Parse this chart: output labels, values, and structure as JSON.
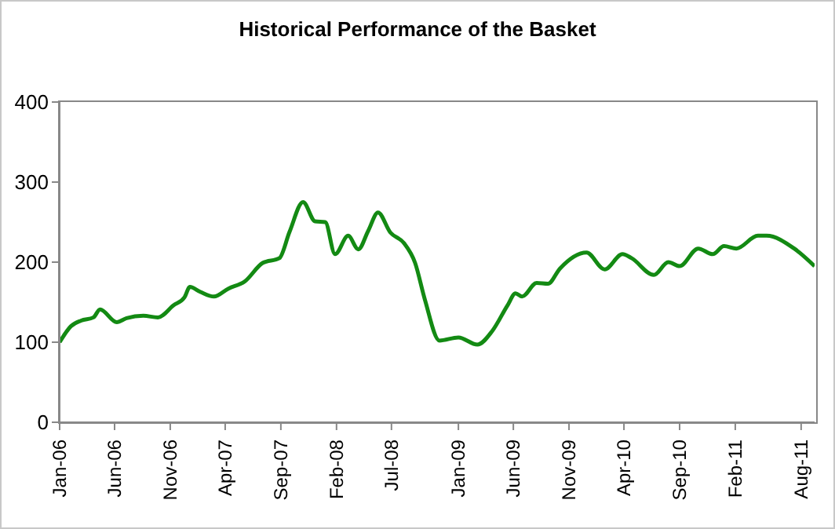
{
  "chart_data": {
    "type": "line",
    "title": "Historical Performance of the Basket",
    "x": [
      "2006-01-01",
      "2006-02-01",
      "2006-03-01",
      "2006-04-04",
      "2006-04-22",
      "2006-06-07",
      "2006-07-04",
      "2006-08-19",
      "2006-09-28",
      "2006-11-10",
      "2006-12-10",
      "2006-12-25",
      "2007-01-22",
      "2007-03-01",
      "2007-04-10",
      "2007-05-25",
      "2007-07-13",
      "2007-08-28",
      "2007-09-25",
      "2007-11-01",
      "2007-12-04",
      "2008-01-01",
      "2008-01-28",
      "2008-03-04",
      "2008-04-01",
      "2008-04-28",
      "2008-05-25",
      "2008-06-28",
      "2008-08-04",
      "2008-09-04",
      "2008-10-01",
      "2008-11-10",
      "2009-01-01",
      "2009-02-22",
      "2009-04-04",
      "2009-05-16",
      "2009-06-07",
      "2009-06-25",
      "2009-08-04",
      "2009-09-04",
      "2009-10-07",
      "2009-12-19",
      "2010-02-07",
      "2010-03-28",
      "2010-04-22",
      "2010-06-22",
      "2010-08-01",
      "2010-09-01",
      "2010-10-22",
      "2010-12-01",
      "2011-01-01",
      "2011-02-04",
      "2011-04-04",
      "2011-04-28",
      "2011-07-13",
      "2011-09-07"
    ],
    "series": [
      {
        "color": "#138a13",
        "values": [
          100,
          120,
          127,
          131,
          141,
          125,
          130,
          133,
          131,
          146,
          156,
          169,
          163,
          157,
          167,
          176,
          199,
          205,
          238,
          275,
          251,
          250,
          210,
          233,
          216,
          239,
          262,
          237,
          224,
          199,
          153,
          102,
          106,
          97,
          114,
          146,
          161,
          157,
          174,
          173,
          192,
          212,
          191,
          210,
          205,
          184,
          200,
          195,
          217,
          210,
          220,
          217,
          233,
          233,
          217,
          195
        ]
      }
    ],
    "xlim": [
      "2006-01-01",
      "2011-09-07"
    ],
    "xticks": [
      {
        "value": "2006-01-01",
        "label": "Jan-06"
      },
      {
        "value": "2006-06-01",
        "label": "Jun-06"
      },
      {
        "value": "2006-11-01",
        "label": "Nov-06"
      },
      {
        "value": "2007-04-01",
        "label": "Apr-07"
      },
      {
        "value": "2007-09-01",
        "label": "Sep-07"
      },
      {
        "value": "2008-02-01",
        "label": "Feb-08"
      },
      {
        "value": "2008-07-01",
        "label": "Jul-08"
      },
      {
        "value": "2009-01-01",
        "label": "Jan-09"
      },
      {
        "value": "2009-06-01",
        "label": "Jun-09"
      },
      {
        "value": "2009-11-01",
        "label": "Nov-09"
      },
      {
        "value": "2010-04-01",
        "label": "Apr-10"
      },
      {
        "value": "2010-09-01",
        "label": "Sep-10"
      },
      {
        "value": "2011-02-01",
        "label": "Feb-11"
      },
      {
        "value": "2011-08-01",
        "label": "Aug-11"
      }
    ],
    "ylim": [
      0,
      400
    ],
    "yticks": [
      0,
      100,
      200,
      300,
      400
    ],
    "marker": "none",
    "line_style": "solid"
  }
}
